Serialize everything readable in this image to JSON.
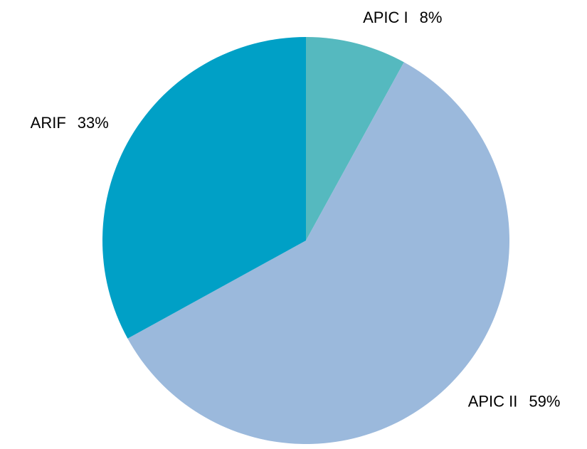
{
  "chart_data": {
    "type": "pie",
    "categories": [
      "APIC I",
      "APIC II",
      "ARIF"
    ],
    "values": [
      8,
      59,
      33
    ],
    "value_labels": [
      "8%",
      "59%",
      "33%"
    ],
    "colors": [
      "#55b9bf",
      "#9bb9dc",
      "#00a0c6"
    ]
  }
}
